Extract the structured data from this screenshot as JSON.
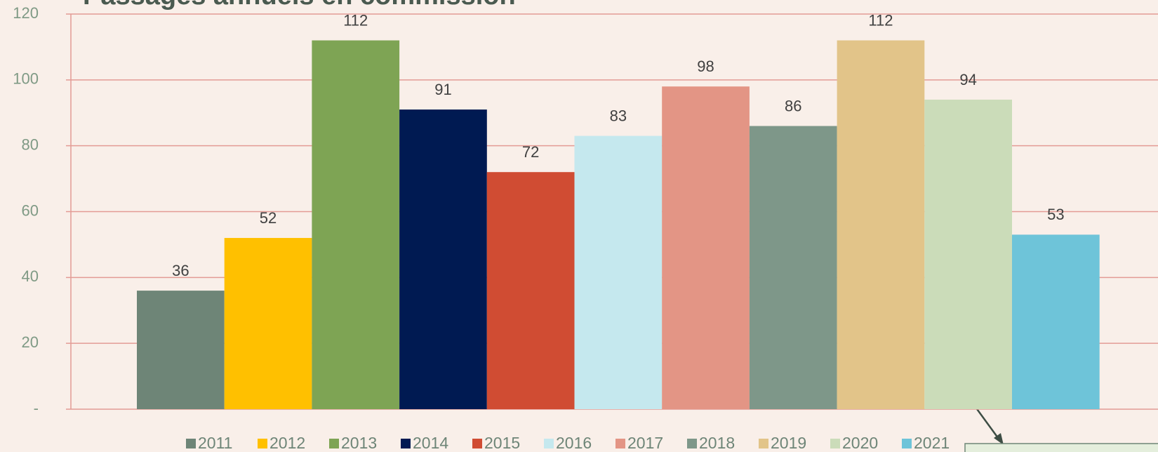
{
  "chart_data": {
    "type": "bar",
    "title": "Passages annuels en commission",
    "series": [
      {
        "name": "2011",
        "color": "#6e8577",
        "values": [
          36
        ]
      },
      {
        "name": "2012",
        "color": "#ffc000",
        "values": [
          52
        ]
      },
      {
        "name": "2013",
        "color": "#7ea454",
        "values": [
          112
        ]
      },
      {
        "name": "2014",
        "color": "#001a52",
        "values": [
          91
        ]
      },
      {
        "name": "2015",
        "color": "#d04c33",
        "values": [
          72
        ]
      },
      {
        "name": "2016",
        "color": "#c5e8ee",
        "values": [
          83
        ]
      },
      {
        "name": "2017",
        "color": "#e39585",
        "values": [
          98
        ]
      },
      {
        "name": "2018",
        "color": "#7e9789",
        "values": [
          86
        ]
      },
      {
        "name": "2019",
        "color": "#e2c489",
        "values": [
          112
        ]
      },
      {
        "name": "2020",
        "color": "#cbdcb9",
        "values": [
          94
        ]
      },
      {
        "name": "2021",
        "color": "#6ec4d9",
        "values": [
          53
        ]
      }
    ],
    "ylim": [
      0,
      120
    ],
    "yticks": [
      {
        "value": 0,
        "label": "-"
      },
      20,
      40,
      60,
      80,
      100,
      120
    ],
    "grid": true,
    "legend": "bottom"
  }
}
